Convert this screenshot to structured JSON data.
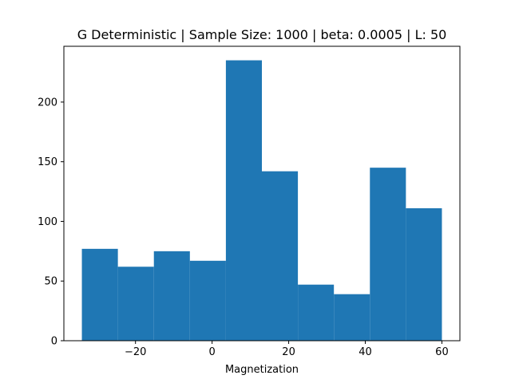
{
  "chart_data": {
    "type": "bar",
    "title": "G Deterministic | Sample Size: 1000 | beta: 0.0005 | L: 50",
    "xlabel": "Magnetization",
    "ylabel": "",
    "bar_color": "#1f77b4",
    "bins": [
      {
        "x0": -34,
        "x1": -24.6,
        "count": 77
      },
      {
        "x0": -24.6,
        "x1": -15.2,
        "count": 62
      },
      {
        "x0": -15.2,
        "x1": -5.8,
        "count": 75
      },
      {
        "x0": -5.8,
        "x1": 3.6,
        "count": 67
      },
      {
        "x0": 3.6,
        "x1": 13.0,
        "count": 235
      },
      {
        "x0": 13.0,
        "x1": 22.4,
        "count": 142
      },
      {
        "x0": 22.4,
        "x1": 31.8,
        "count": 47
      },
      {
        "x0": 31.8,
        "x1": 41.2,
        "count": 39
      },
      {
        "x0": 41.2,
        "x1": 50.6,
        "count": 145
      },
      {
        "x0": 50.6,
        "x1": 60,
        "count": 111
      }
    ],
    "xlim": [
      -38.7,
      64.7
    ],
    "ylim": [
      0,
      246.75
    ],
    "xticks": [
      -20,
      0,
      20,
      40,
      60
    ],
    "xtick_labels": [
      "−20",
      "0",
      "20",
      "40",
      "60"
    ],
    "yticks": [
      0,
      50,
      100,
      150,
      200
    ],
    "ytick_labels": [
      "0",
      "50",
      "100",
      "150",
      "200"
    ],
    "grid": false,
    "legend": "none"
  }
}
